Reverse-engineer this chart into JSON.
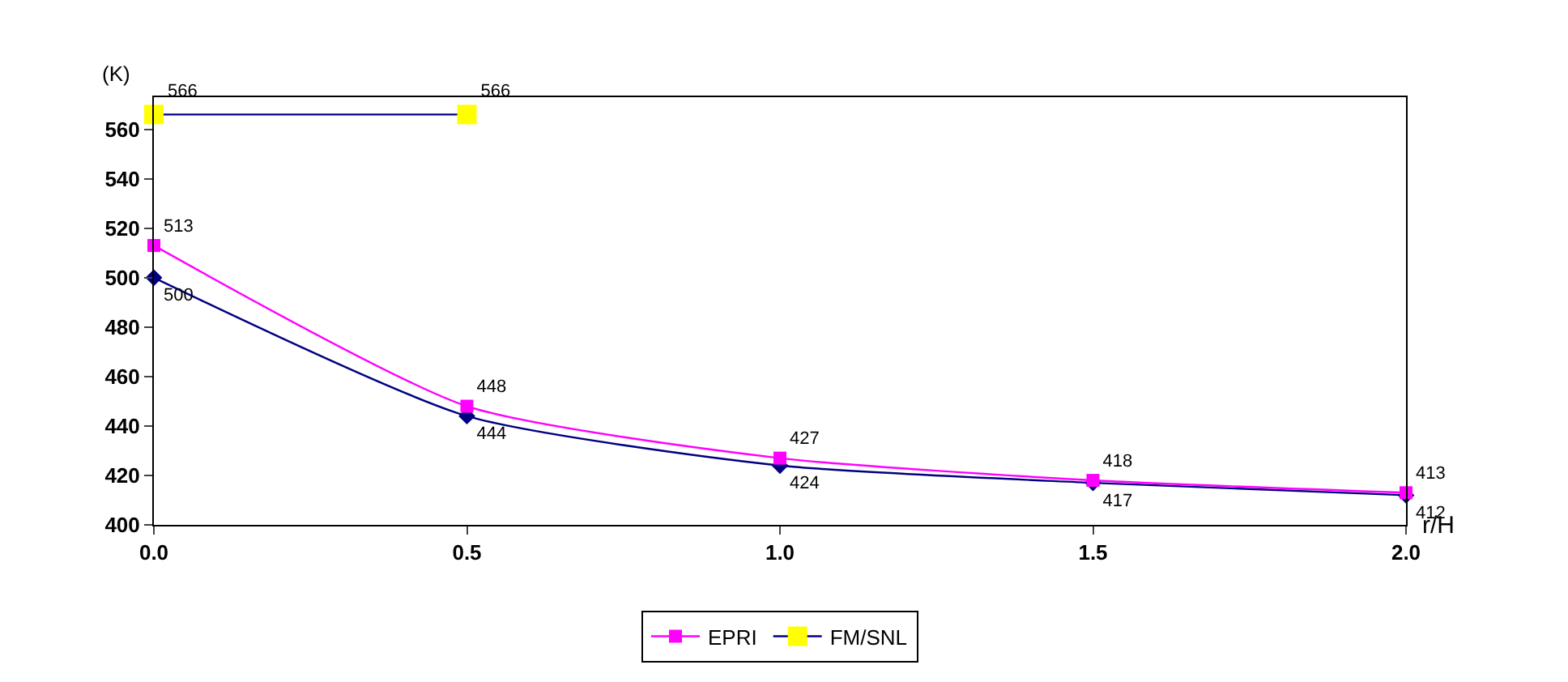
{
  "chart_data": {
    "type": "line",
    "xlabel": "r/H",
    "ylabel": "(K)",
    "x": [
      0,
      0.5,
      1,
      1.5,
      2
    ],
    "xlim": [
      0,
      2
    ],
    "xticks": [
      {
        "value": 0,
        "label": "0.0"
      },
      {
        "value": 0.5,
        "label": "0.5"
      },
      {
        "value": 1,
        "label": "1.0"
      },
      {
        "value": 1.5,
        "label": "1.5"
      },
      {
        "value": 2,
        "label": "2.0"
      }
    ],
    "ylim": [
      400,
      573
    ],
    "yticks": [
      400,
      420,
      440,
      460,
      480,
      500,
      520,
      540,
      560
    ],
    "legend": "bottom",
    "data_labels": true,
    "line_style": "solid",
    "series": [
      {
        "color": "#000080",
        "marker": "diamond",
        "values": [
          500,
          444,
          424,
          417,
          412
        ]
      },
      {
        "name": "EPRI",
        "color": "#ff00ff",
        "marker": "square",
        "values": [
          513,
          448,
          427,
          418,
          413
        ]
      },
      {
        "name": "FM/SNL",
        "color": "#ffff00",
        "marker": "square",
        "x": [
          0,
          0.5
        ],
        "values": [
          566,
          566
        ]
      }
    ]
  }
}
